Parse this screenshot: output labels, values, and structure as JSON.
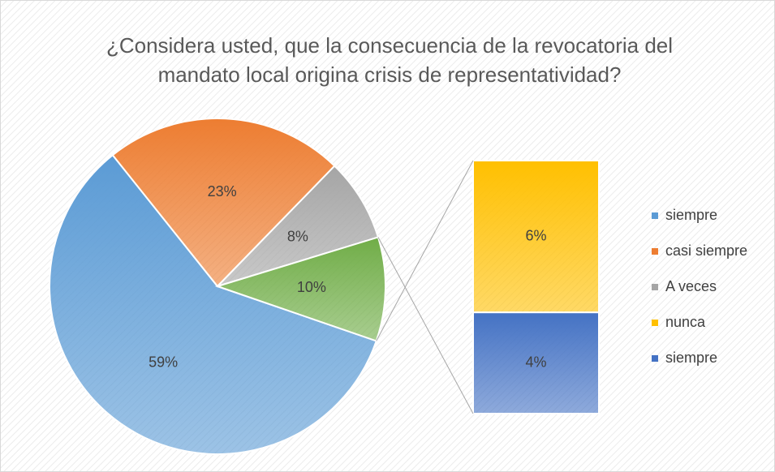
{
  "chart_data": {
    "type": "pie",
    "title": "¿Considera usted, que la consecuencia de la revocatoria del mandato local origina crisis de representatividad?",
    "categories": [
      "siempre",
      "casi siempre",
      "A veces"
    ],
    "values": [
      59,
      23,
      8
    ],
    "value_labels": [
      "59%",
      "23%",
      "8%"
    ],
    "colors": [
      "#5b9bd5",
      "#ed7d31",
      "#a5a5a5"
    ],
    "other_value": 10,
    "other_label": "10%",
    "other_color": "#70ad47",
    "bar_categories": [
      "nunca",
      "siempre"
    ],
    "bar_values": [
      6,
      4
    ],
    "bar_value_labels": [
      "6%",
      "4%"
    ],
    "bar_colors": [
      "#ffc000",
      "#4472c4"
    ]
  }
}
